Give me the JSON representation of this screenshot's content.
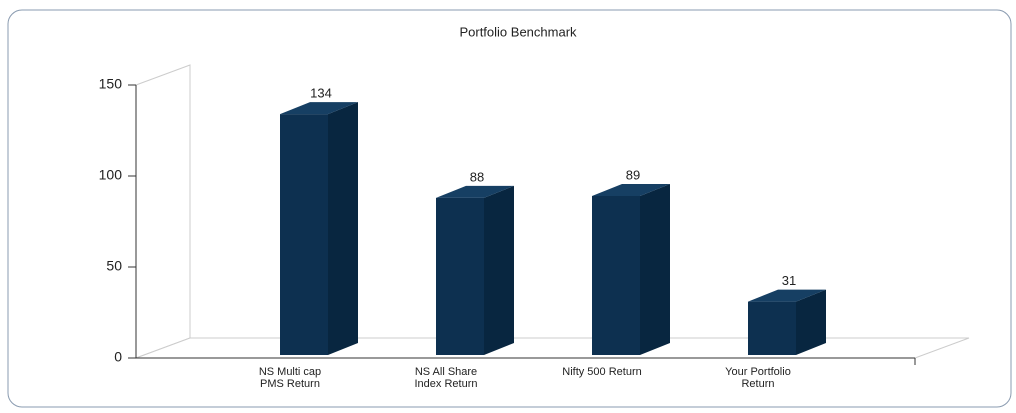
{
  "chart_data": {
    "type": "bar3d",
    "title": "Portfolio Benchmark",
    "categories": [
      "NS Multi cap\nPMS Return",
      "NS All Share\nIndex Return",
      "Nifty 500 Return",
      "Your Portfolio\nReturn"
    ],
    "values": [
      134,
      88,
      89,
      31
    ],
    "color": "#0d3050",
    "ylim": [
      0,
      150
    ],
    "yticks": [
      0,
      50,
      100,
      150
    ]
  }
}
